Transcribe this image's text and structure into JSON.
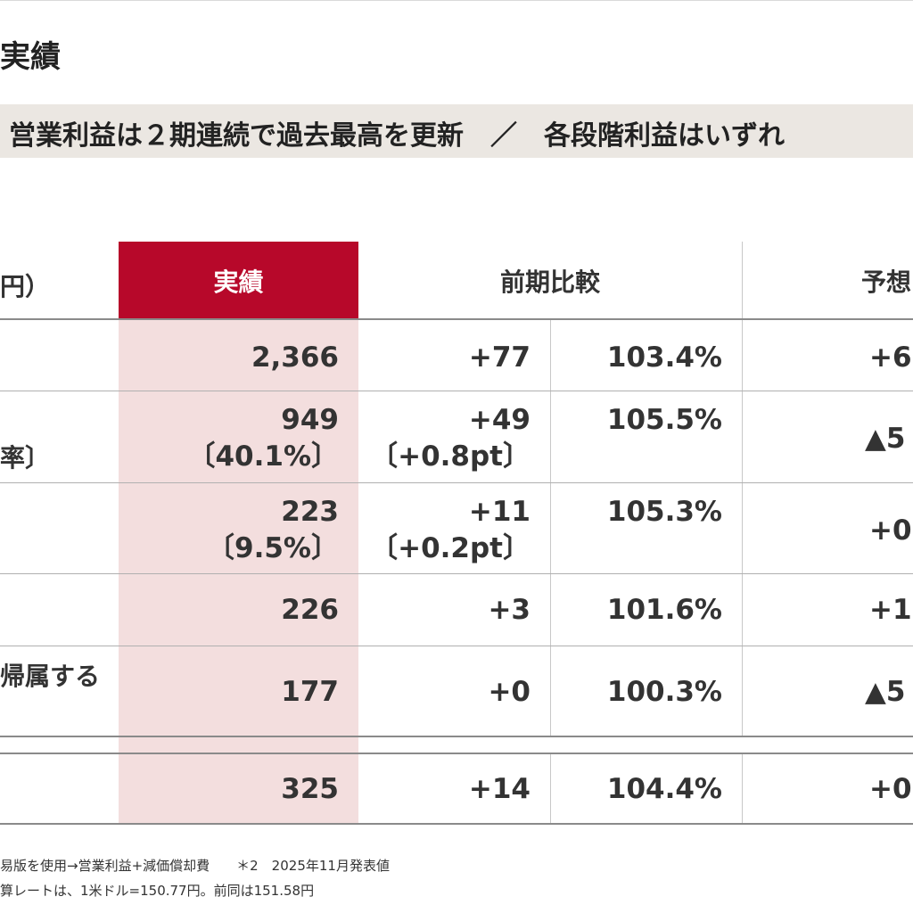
{
  "title": "実績",
  "banner": "営業利益は２期連続で過去最高を更新　／　各段階利益はいずれ",
  "table": {
    "unit_label": "円）",
    "headers": {
      "actual": "実績",
      "yoy": "前期比較",
      "forecast": "予想"
    },
    "rows": [
      {
        "label": "",
        "actual": "2,366",
        "actual_sub": "",
        "diff": "+77",
        "diff_sub": "",
        "ratio": "103.4%",
        "forecast": "+6"
      },
      {
        "label": "率〕",
        "actual": "949",
        "actual_sub": "〔40.1%〕",
        "diff": "+49",
        "diff_sub": "〔+0.8pt〕",
        "ratio": "105.5%",
        "forecast": "▲5"
      },
      {
        "label": "",
        "actual": "223",
        "actual_sub": "〔9.5%〕",
        "diff": "+11",
        "diff_sub": "〔+0.2pt〕",
        "ratio": "105.3%",
        "forecast": "+0"
      },
      {
        "label": "",
        "actual": "226",
        "actual_sub": "",
        "diff": "+3",
        "diff_sub": "",
        "ratio": "101.6%",
        "forecast": "+1"
      },
      {
        "label": "帰属する",
        "actual": "177",
        "actual_sub": "",
        "diff": "+0",
        "diff_sub": "",
        "ratio": "100.3%",
        "forecast": "▲5"
      },
      {
        "label": "",
        "actual": "325",
        "actual_sub": "",
        "diff": "+14",
        "diff_sub": "",
        "ratio": "104.4%",
        "forecast": "+0"
      }
    ]
  },
  "footnotes": [
    "易版を使用→営業利益+減価償却費　　＊2　2025年11月発表値",
    "算レートは、1米ドル=150.77円。前同は151.58円"
  ]
}
